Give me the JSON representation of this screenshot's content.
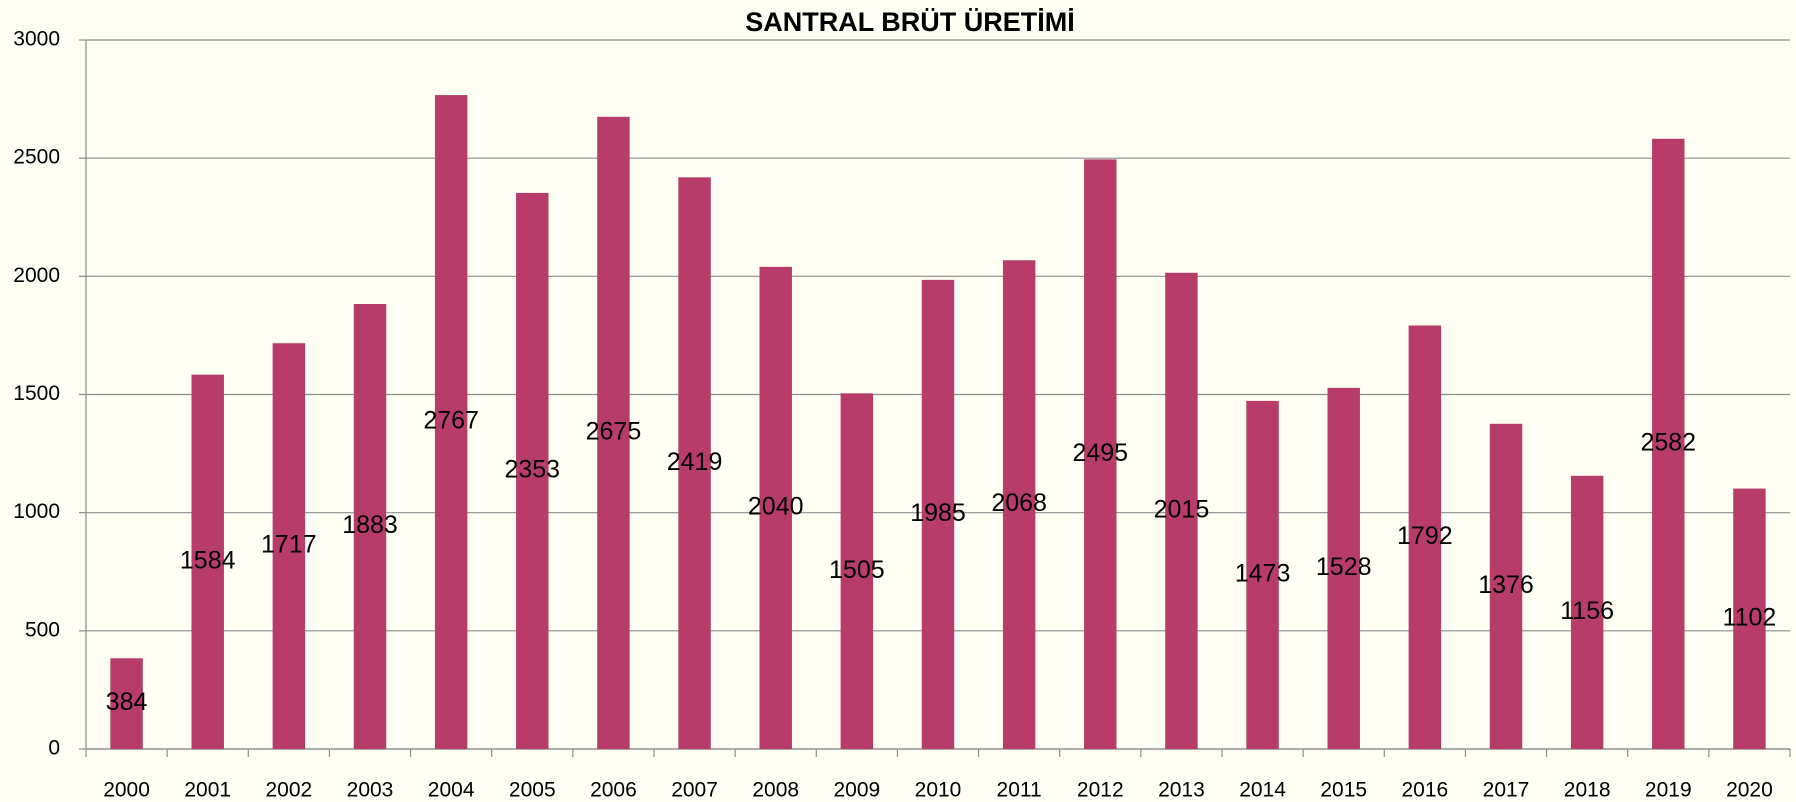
{
  "chart_data": {
    "type": "bar",
    "title": "SANTRAL BRÜT ÜRETİMİ",
    "categories": [
      "2000",
      "2001",
      "2002",
      "2003",
      "2004",
      "2005",
      "2006",
      "2007",
      "2008",
      "2009",
      "2010",
      "2011",
      "2012",
      "2013",
      "2014",
      "2015",
      "2016",
      "2017",
      "2018",
      "2019",
      "2020"
    ],
    "values": [
      384,
      1584,
      1717,
      1883,
      2767,
      2353,
      2675,
      2419,
      2040,
      1505,
      1985,
      2068,
      2495,
      2015,
      1473,
      1528,
      1792,
      1376,
      1156,
      2582,
      1102
    ],
    "color": "#b83c69",
    "ylim": [
      0,
      3000
    ],
    "yticks": [
      0,
      500,
      1000,
      1500,
      2000,
      2500,
      3000
    ],
    "grid": true
  }
}
